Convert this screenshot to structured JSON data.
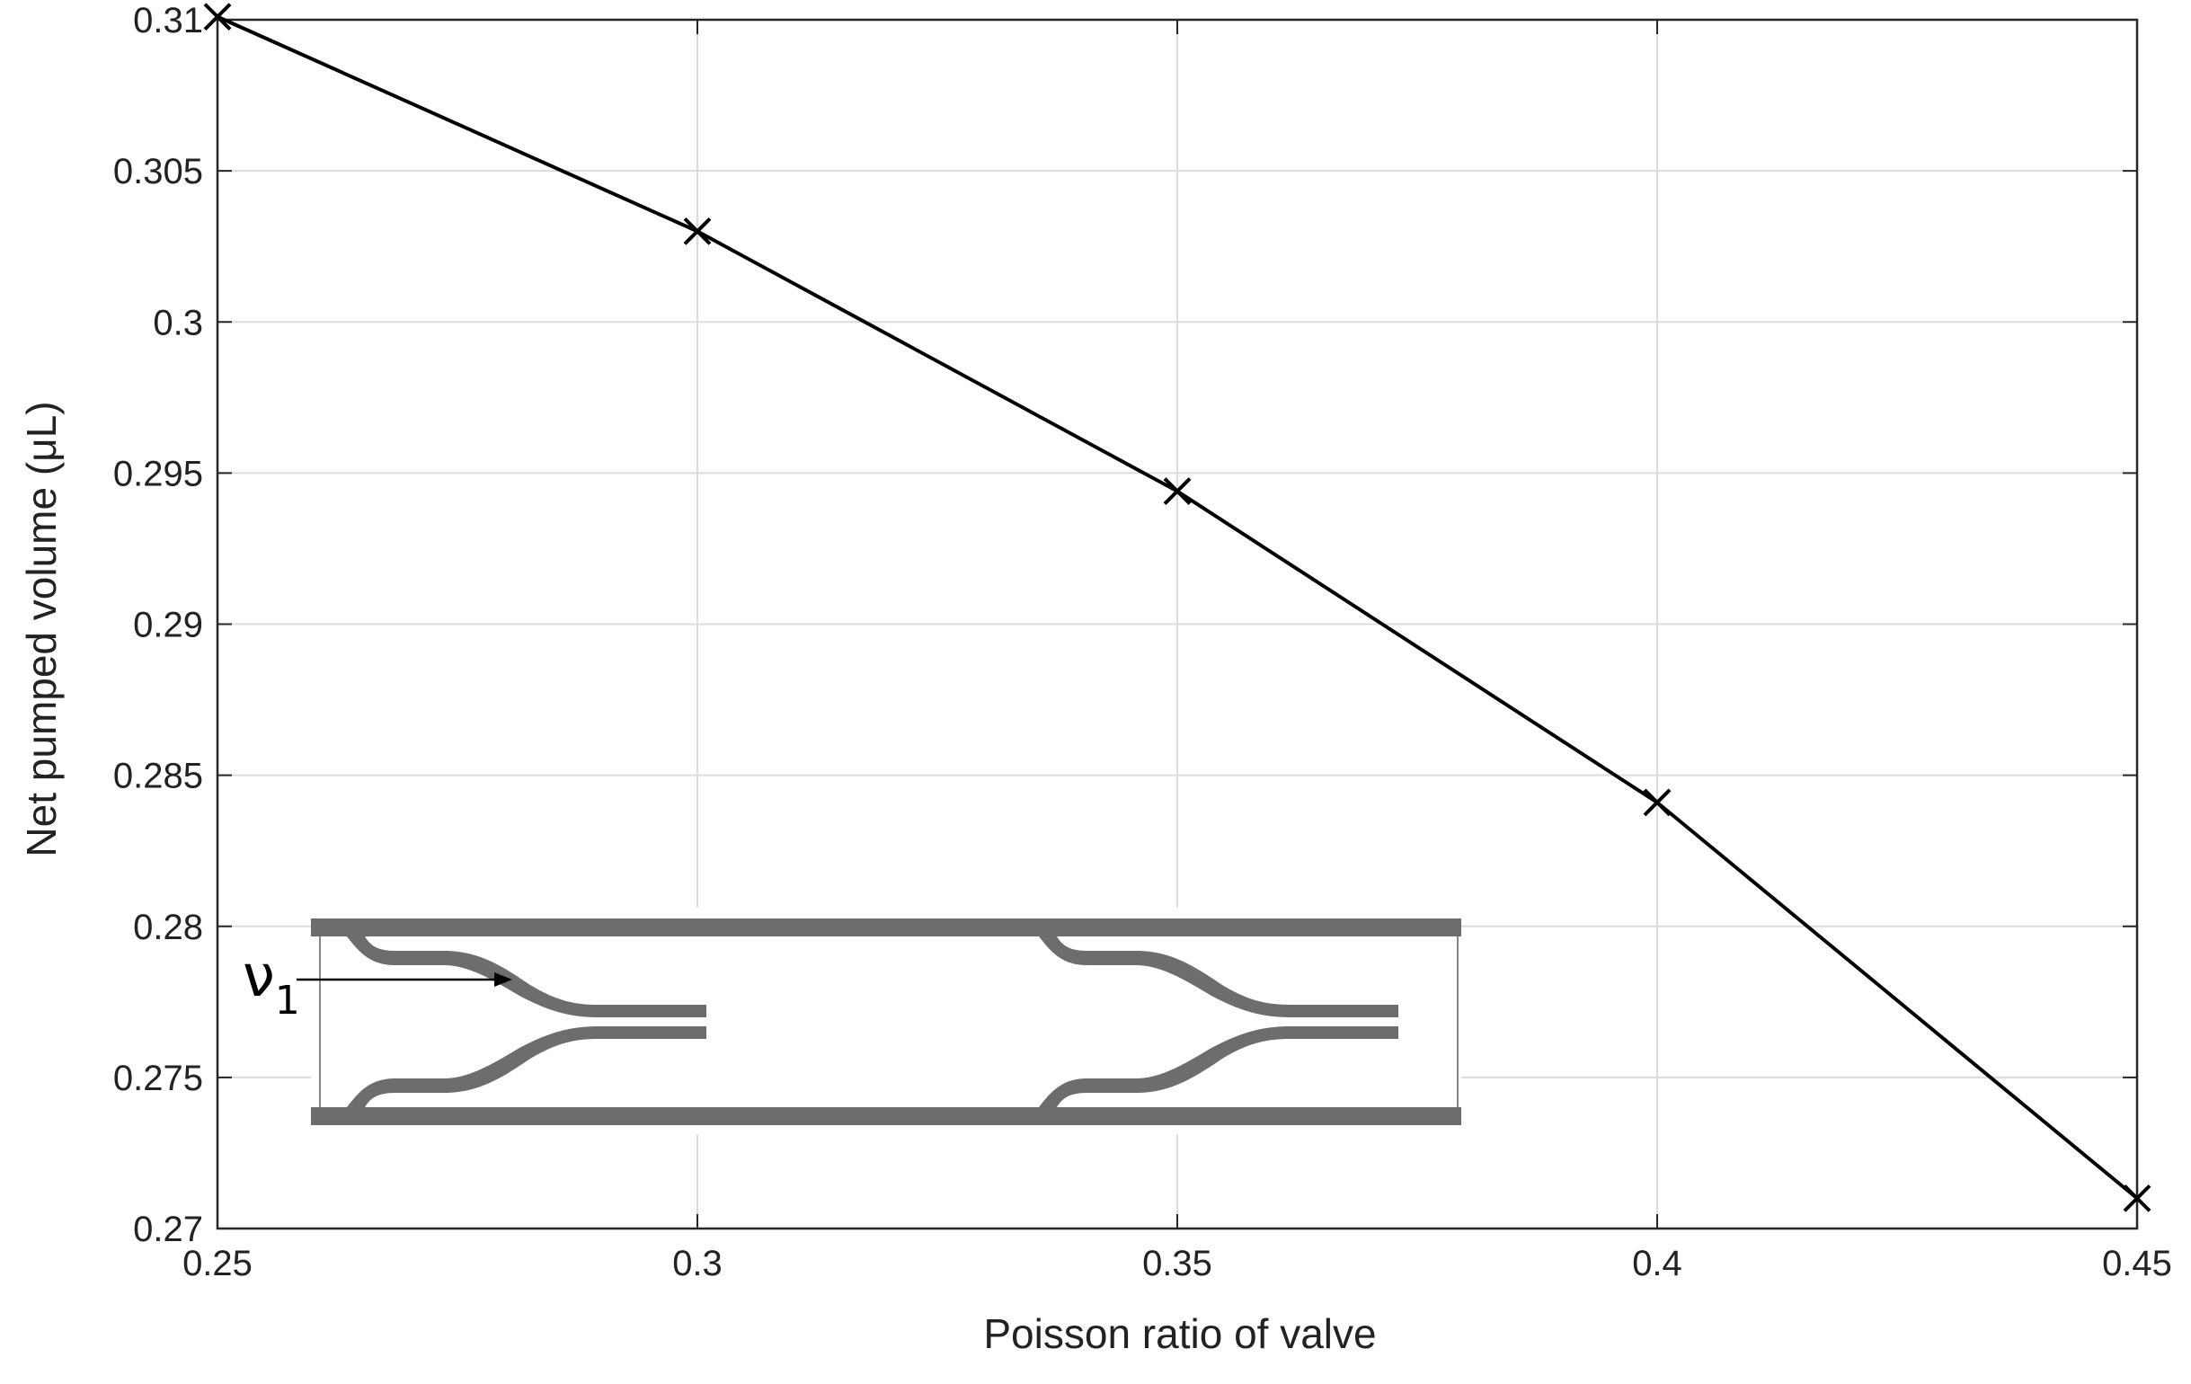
{
  "chart_data": {
    "type": "line",
    "title": "",
    "xlabel": "Poisson ratio of valve",
    "ylabel": "Net pumped volume (μL)",
    "xlim": [
      0.25,
      0.45
    ],
    "ylim": [
      0.27,
      0.31
    ],
    "grid": true,
    "marker": "x",
    "line_color": "#000000",
    "x_ticks": [
      "0.25",
      "0.3",
      "0.35",
      "0.4",
      "0.45"
    ],
    "y_ticks": [
      "0.27",
      "0.275",
      "0.28",
      "0.285",
      "0.29",
      "0.295",
      "0.3",
      "0.305",
      "0.31"
    ],
    "series": [
      {
        "x": [
          0.25,
          0.3,
          0.35,
          0.4,
          0.45
        ],
        "y": [
          0.3101,
          0.303,
          0.2944,
          0.2841,
          0.271
        ]
      }
    ]
  },
  "inset": {
    "label_main": "ν",
    "label_sub": "1",
    "fill_color": "#6d6d6d"
  }
}
